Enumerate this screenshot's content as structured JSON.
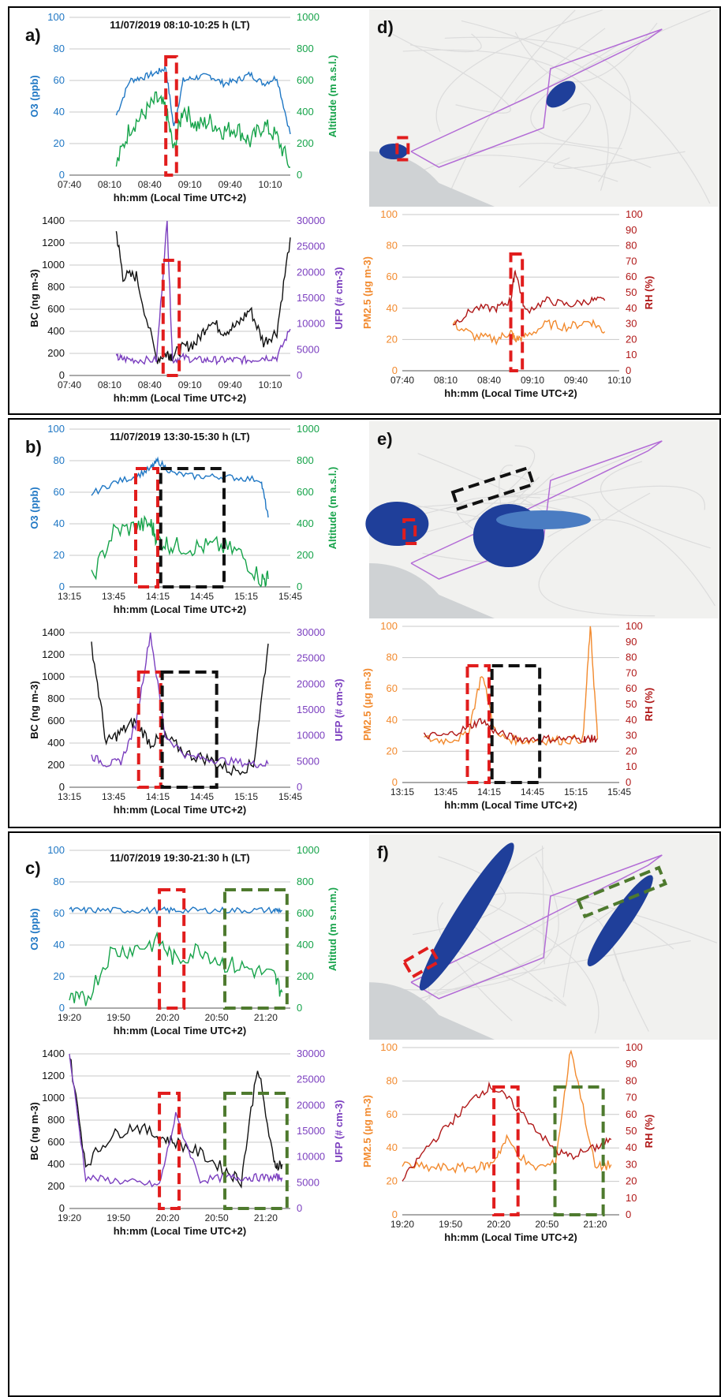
{
  "colors": {
    "o3": "#1f77c4",
    "alt": "#16a34a",
    "bc": "#111111",
    "ufp": "#7b3fbf",
    "pm": "#f28a2e",
    "rh": "#b01818",
    "red_box": "#e11d1d",
    "black_box": "#111111",
    "green_box": "#4e7a2e",
    "map_land": "#f1f1ef",
    "map_sea": "#cfd2d4",
    "plume": "#1f3f9a",
    "track": "#b36cd6"
  },
  "panels": [
    {
      "id": "a",
      "letter": "a)",
      "top_chart": {
        "title": "11/07/2019 08:10-10:25 h (LT)",
        "left_label": "O3 (ppb)",
        "left_ticks": [
          "0",
          "20",
          "40",
          "60",
          "80",
          "100"
        ],
        "right_label": "Altitude (m a.s.l.)",
        "right_ticks": [
          "0",
          "200",
          "400",
          "600",
          "800",
          "1000"
        ],
        "x_ticks": [
          "07:40",
          "08:10",
          "08:40",
          "09:10",
          "09:40",
          "10:10"
        ],
        "xlabel": "hh:mm (Local Time UTC+2)"
      },
      "bottom_chart": {
        "left_label": "BC (ng m-3)",
        "left_ticks": [
          "0",
          "200",
          "400",
          "600",
          "800",
          "1000",
          "1200",
          "1400"
        ],
        "right_label": "UFP (# cm-3)",
        "right_ticks": [
          "0",
          "5000",
          "10000",
          "15000",
          "20000",
          "25000",
          "30000"
        ],
        "x_ticks": [
          "07:40",
          "08:10",
          "08:40",
          "09:10",
          "09:40",
          "10:10"
        ],
        "xlabel": "hh:mm (Local Time UTC+2)"
      },
      "pm_chart": {
        "left_label": "PM2.5 (µg m-3)",
        "left_ticks": [
          "0",
          "20",
          "40",
          "60",
          "80",
          "100"
        ],
        "right_label": "RH (%)",
        "right_ticks": [
          "0",
          "10",
          "20",
          "30",
          "40",
          "50",
          "60",
          "70",
          "80",
          "90",
          "100"
        ],
        "x_ticks": [
          "07:40",
          "08:10",
          "08:40",
          "09:10",
          "09:40",
          "10:10"
        ],
        "xlabel": "hh:mm (Local Time UTC+2)"
      },
      "map_letter": "d)"
    },
    {
      "id": "b",
      "letter": "b)",
      "top_chart": {
        "title": "11/07/2019 13:30-15:30 h (LT)",
        "left_label": "O3 (ppb)",
        "left_ticks": [
          "0",
          "20",
          "40",
          "60",
          "80",
          "100"
        ],
        "right_label": "Altitude (m a.s.l.)",
        "right_ticks": [
          "0",
          "200",
          "400",
          "600",
          "800",
          "1000"
        ],
        "x_ticks": [
          "13:15",
          "13:45",
          "14:15",
          "14:45",
          "15:15",
          "15:45"
        ],
        "xlabel": "hh:mm (Local Time UTC+2)"
      },
      "bottom_chart": {
        "left_label": "BC (ng m-3)",
        "left_ticks": [
          "0",
          "200",
          "400",
          "600",
          "800",
          "1000",
          "1200",
          "1400"
        ],
        "right_label": "UFP (# cm-3)",
        "right_ticks": [
          "0",
          "5000",
          "10000",
          "15000",
          "20000",
          "25000",
          "30000"
        ],
        "x_ticks": [
          "13:15",
          "13:45",
          "14:15",
          "14:45",
          "15:15",
          "15:45"
        ],
        "xlabel": "hh:mm (Local Time UTC+2)"
      },
      "pm_chart": {
        "left_label": "PM2.5 (µg m-3)",
        "left_ticks": [
          "0",
          "20",
          "40",
          "60",
          "80",
          "100"
        ],
        "right_label": "RH (%)",
        "right_ticks": [
          "0",
          "10",
          "20",
          "30",
          "40",
          "50",
          "60",
          "70",
          "80",
          "90",
          "100"
        ],
        "x_ticks": [
          "13:15",
          "13:45",
          "14:15",
          "14:45",
          "15:15",
          "15:45"
        ],
        "xlabel": "hh:mm (Local Time UTC+2)"
      },
      "map_letter": "e)"
    },
    {
      "id": "c",
      "letter": "c)",
      "top_chart": {
        "title": "11/07/2019 19:30-21:30 h (LT)",
        "left_label": "O3 (ppb)",
        "left_ticks": [
          "0",
          "20",
          "40",
          "60",
          "80",
          "100"
        ],
        "right_label": "Altitud (m s.n.m.)",
        "right_ticks": [
          "0",
          "200",
          "400",
          "600",
          "800",
          "1000"
        ],
        "x_ticks": [
          "19:20",
          "19:50",
          "20:20",
          "20:50",
          "21:20"
        ],
        "xlabel": "hh:mm (Local Time UTC+2)"
      },
      "bottom_chart": {
        "left_label": "BC (ng m-3)",
        "left_ticks": [
          "0",
          "200",
          "400",
          "600",
          "800",
          "1000",
          "1200",
          "1400"
        ],
        "right_label": "UFP (# cm-3)",
        "right_ticks": [
          "0",
          "5000",
          "10000",
          "15000",
          "20000",
          "25000",
          "30000"
        ],
        "x_ticks": [
          "19:20",
          "19:50",
          "20:20",
          "20:50",
          "21:20"
        ],
        "xlabel": "hh:mm (Local Time UTC+2)"
      },
      "pm_chart": {
        "left_label": "PM2.5 (µg m-3)",
        "left_ticks": [
          "0",
          "20",
          "40",
          "60",
          "80",
          "100"
        ],
        "right_label": "RH (%)",
        "right_ticks": [
          "0",
          "10",
          "20",
          "30",
          "40",
          "50",
          "60",
          "70",
          "80",
          "90",
          "100"
        ],
        "x_ticks": [
          "19:20",
          "19:50",
          "20:20",
          "20:50",
          "21:20"
        ],
        "xlabel": "hh:mm (Local Time UTC+2)"
      },
      "map_letter": "f)"
    }
  ],
  "chart_data": [
    {
      "panel": "a",
      "type": "line",
      "title": "11/07/2019 08:10-10:25 h (LT)",
      "x": [
        "08:15",
        "08:25",
        "08:35",
        "08:45",
        "08:52",
        "08:58",
        "09:05",
        "09:15",
        "09:25",
        "09:35",
        "09:45",
        "09:55",
        "10:05",
        "10:15",
        "10:25"
      ],
      "series": [
        {
          "name": "O3 (ppb)",
          "axis": "left",
          "values": [
            38,
            60,
            62,
            65,
            68,
            30,
            60,
            62,
            63,
            58,
            60,
            64,
            58,
            62,
            26
          ]
        },
        {
          "name": "Altitude (m a.s.l.)",
          "axis": "right",
          "values": [
            60,
            300,
            380,
            480,
            420,
            150,
            430,
            310,
            340,
            280,
            300,
            210,
            320,
            240,
            50
          ]
        }
      ],
      "ylim_left": [
        0,
        100
      ],
      "ylim_right": [
        0,
        1000
      ]
    },
    {
      "panel": "a",
      "type": "line",
      "x": [
        "08:15",
        "08:20",
        "08:30",
        "08:45",
        "08:53",
        "08:57",
        "09:05",
        "09:15",
        "09:25",
        "09:35",
        "09:45",
        "09:55",
        "10:05",
        "10:15",
        "10:25"
      ],
      "series": [
        {
          "name": "BC (ng m-3)",
          "axis": "left",
          "values": [
            1300,
            900,
            900,
            150,
            200,
            180,
            250,
            300,
            500,
            400,
            450,
            600,
            300,
            400,
            1250
          ]
        },
        {
          "name": "UFP (# cm-3)",
          "axis": "right",
          "values": [
            3500,
            3200,
            3000,
            3000,
            30000,
            3000,
            3500,
            3000,
            3000,
            3000,
            3000,
            3000,
            3500,
            3500,
            9000
          ]
        }
      ],
      "ylim_left": [
        0,
        1400
      ],
      "ylim_right": [
        0,
        30000
      ]
    },
    {
      "panel": "d",
      "type": "line",
      "x": [
        "08:15",
        "08:30",
        "08:45",
        "08:55",
        "08:58",
        "09:05",
        "09:20",
        "09:35",
        "09:50",
        "10:00"
      ],
      "series": [
        {
          "name": "PM2.5 (µg m-3)",
          "axis": "left",
          "values": [
            30,
            22,
            20,
            25,
            20,
            22,
            30,
            28,
            32,
            25
          ]
        },
        {
          "name": "RH (%)",
          "axis": "right",
          "values": [
            30,
            40,
            40,
            45,
            65,
            38,
            45,
            42,
            45,
            45
          ]
        }
      ],
      "ylim_left": [
        0,
        100
      ],
      "ylim_right": [
        0,
        100
      ]
    },
    {
      "panel": "b",
      "type": "line",
      "title": "11/07/2019 13:30-15:30 h (LT)",
      "x": [
        "13:30",
        "13:45",
        "14:00",
        "14:10",
        "14:15",
        "14:25",
        "14:40",
        "14:55",
        "15:10",
        "15:25",
        "15:30"
      ],
      "series": [
        {
          "name": "O3 (ppb)",
          "axis": "left",
          "values": [
            59,
            66,
            70,
            75,
            80,
            72,
            70,
            70,
            69,
            68,
            44
          ]
        },
        {
          "name": "Altitude (m a.s.l.)",
          "axis": "right",
          "values": [
            50,
            350,
            380,
            400,
            300,
            260,
            250,
            260,
            220,
            50,
            50
          ]
        }
      ],
      "ylim_left": [
        0,
        100
      ],
      "ylim_right": [
        0,
        1000
      ]
    },
    {
      "panel": "b",
      "type": "line",
      "x": [
        "13:30",
        "13:40",
        "13:50",
        "14:00",
        "14:10",
        "14:20",
        "14:35",
        "14:50",
        "15:05",
        "15:20",
        "15:30"
      ],
      "series": [
        {
          "name": "BC (ng m-3)",
          "axis": "left",
          "values": [
            1300,
            400,
            500,
            600,
            400,
            450,
            300,
            250,
            150,
            200,
            1300
          ]
        },
        {
          "name": "UFP (# cm-3)",
          "axis": "right",
          "values": [
            6000,
            4500,
            5000,
            12000,
            30000,
            10000,
            6000,
            5500,
            5000,
            4500,
            4500
          ]
        }
      ],
      "ylim_left": [
        0,
        1400
      ],
      "ylim_right": [
        0,
        30000
      ]
    },
    {
      "panel": "e",
      "type": "line",
      "x": [
        "13:30",
        "13:45",
        "14:00",
        "14:10",
        "14:20",
        "14:35",
        "14:50",
        "15:05",
        "15:20",
        "15:25",
        "15:30"
      ],
      "series": [
        {
          "name": "PM2.5 (µg m-3)",
          "axis": "left",
          "values": [
            28,
            27,
            30,
            70,
            30,
            27,
            27,
            27,
            28,
            100,
            28
          ]
        },
        {
          "name": "RH (%)",
          "axis": "right",
          "values": [
            30,
            30,
            35,
            40,
            32,
            28,
            28,
            28,
            28,
            28,
            28
          ]
        }
      ],
      "ylim_left": [
        0,
        100
      ],
      "ylim_right": [
        0,
        100
      ]
    },
    {
      "panel": "c",
      "type": "line",
      "title": "11/07/2019 19:30-21:30 h (LT)",
      "x": [
        "19:20",
        "19:30",
        "19:45",
        "20:00",
        "20:15",
        "20:25",
        "20:40",
        "20:55",
        "21:10",
        "21:25",
        "21:30"
      ],
      "series": [
        {
          "name": "O3 (ppb)",
          "axis": "left",
          "values": [
            62,
            62,
            62,
            62,
            62,
            62,
            62,
            62,
            62,
            62,
            62
          ]
        },
        {
          "name": "Altitud (m s.n.m.)",
          "axis": "right",
          "values": [
            50,
            50,
            350,
            380,
            420,
            300,
            380,
            280,
            250,
            200,
            100
          ]
        }
      ],
      "ylim_left": [
        0,
        100
      ],
      "ylim_right": [
        0,
        1000
      ]
    },
    {
      "panel": "c",
      "type": "line",
      "x": [
        "19:20",
        "19:30",
        "19:45",
        "20:00",
        "20:15",
        "20:25",
        "20:40",
        "20:55",
        "21:05",
        "21:15",
        "21:25",
        "21:30"
      ],
      "series": [
        {
          "name": "BC (ng m-3)",
          "axis": "left",
          "values": [
            1400,
            400,
            650,
            750,
            650,
            600,
            500,
            350,
            250,
            1300,
            400,
            400
          ]
        },
        {
          "name": "UFP (# cm-3)",
          "axis": "right",
          "values": [
            30000,
            6000,
            5500,
            5000,
            4500,
            18000,
            5500,
            6000,
            6000,
            6000,
            6000,
            6000
          ]
        }
      ],
      "ylim_left": [
        0,
        1400
      ],
      "ylim_right": [
        0,
        30000
      ]
    },
    {
      "panel": "f",
      "type": "line",
      "x": [
        "19:20",
        "19:35",
        "19:50",
        "20:05",
        "20:15",
        "20:25",
        "20:40",
        "20:55",
        "21:05",
        "21:20",
        "21:30"
      ],
      "series": [
        {
          "name": "PM2.5 (µg m-3)",
          "axis": "left",
          "values": [
            30,
            28,
            28,
            28,
            30,
            45,
            28,
            30,
            100,
            28,
            30
          ]
        },
        {
          "name": "RH (%)",
          "axis": "right",
          "values": [
            20,
            40,
            55,
            70,
            77,
            70,
            55,
            38,
            35,
            40,
            45
          ]
        }
      ],
      "ylim_left": [
        0,
        100
      ],
      "ylim_right": [
        0,
        100
      ]
    }
  ]
}
